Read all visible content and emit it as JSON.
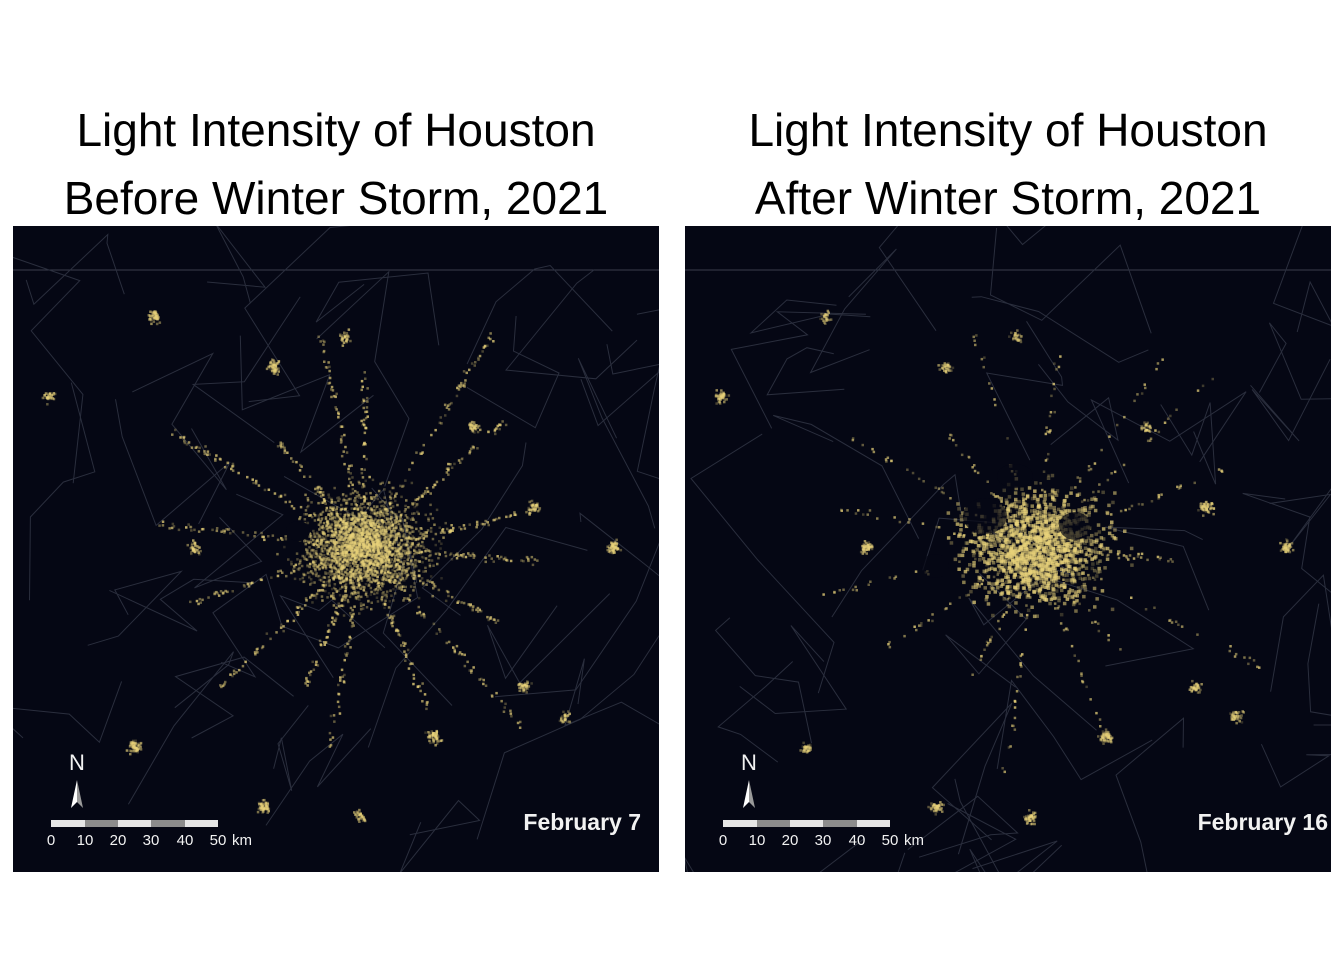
{
  "panels": [
    {
      "title_line1": "Light Intensity of Houston",
      "title_line2": "Before Winter Storm, 2021",
      "date": "February 7",
      "state": "before"
    },
    {
      "title_line1": "Light Intensity of Houston",
      "title_line2": "After Winter Storm, 2021",
      "date": "February 16",
      "state": "after"
    }
  ],
  "north_arrow": {
    "letter": "N"
  },
  "scale_bar": {
    "ticks": [
      "0",
      "10",
      "20",
      "30",
      "40",
      "50"
    ],
    "unit": "km"
  },
  "colors": {
    "background": "#050714",
    "light": "#e8d27a",
    "boundary": "#2a2e3d"
  }
}
